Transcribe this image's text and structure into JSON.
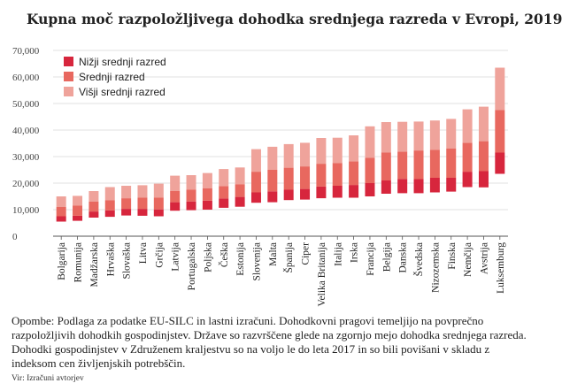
{
  "title": "Kupna moč razpoložljivega dohodka srednjega razreda v Evropi, 2019",
  "note": "Opombe: Podlaga za podatke EU-SILC in lastni izračuni. Dohodkovni pragovi temeljijo na povprečno razpoložljivih dohodkih gospodinjstev. Države so razvrščene glede na zgornjo mejo dohodka srednjega razreda. Dohodki gospodinjstev v Združenem kraljestvu so na voljo le do leta 2017 in so bili povišani v skladu z indeksom cen življenjskih potrebščin.",
  "source": "Vir: Izračuni avtorjev",
  "colors": {
    "lower": "#d7263d",
    "middle": "#e8685f",
    "upper": "#efa39b"
  },
  "chart_data": {
    "type": "bar",
    "stacked": "floating",
    "title": "Kupna moč razpoložljivega dohodka srednjega razreda v Evropi, 2019",
    "ylim": [
      0,
      70000
    ],
    "yticks": [
      "0",
      "10,000",
      "20,000",
      "30,000",
      "40,000",
      "50,000",
      "60,000",
      "70,000"
    ],
    "ytick_values": [
      0,
      10000,
      20000,
      30000,
      40000,
      50000,
      60000,
      70000
    ],
    "grid": true,
    "legend_position": "top-left",
    "categories": [
      "Bolgarija",
      "Romunija",
      "Madžarska",
      "Hrvaška",
      "Slovaška",
      "Litva",
      "Grčija",
      "Latvija",
      "Portugalska",
      "Poljska",
      "Češka",
      "Estonija",
      "Slovenija",
      "Malta",
      "Španija",
      "Ciper",
      "Velika Britanija",
      "Italija",
      "Irska",
      "Francija",
      "Belgija",
      "Danska",
      "Švedska",
      "Nizozemska",
      "Finska",
      "Nemčija",
      "Avstrija",
      "Luksemburg"
    ],
    "series": [
      {
        "name": "Nižji srednji razred",
        "key": "lower",
        "start": [
          5500,
          5800,
          7000,
          7300,
          7800,
          7700,
          7500,
          9600,
          9800,
          10000,
          10700,
          11100,
          12600,
          12800,
          13600,
          13800,
          14300,
          14500,
          14500,
          15000,
          16000,
          16200,
          16200,
          16500,
          16800,
          18500,
          18400,
          23500
        ],
        "end": [
          7500,
          7700,
          9300,
          9700,
          10300,
          10300,
          10100,
          12800,
          13100,
          13400,
          14200,
          14800,
          16500,
          16900,
          17500,
          17800,
          18700,
          19000,
          19300,
          20000,
          21000,
          21600,
          21500,
          22000,
          22000,
          24300,
          24500,
          31500
        ]
      },
      {
        "name": "Srednji razred",
        "key": "middle",
        "start": [
          7500,
          7700,
          9300,
          9700,
          10300,
          10300,
          10100,
          12800,
          13100,
          13400,
          14200,
          14800,
          16500,
          16900,
          17500,
          17800,
          18700,
          19000,
          19300,
          20000,
          21000,
          21600,
          21500,
          22000,
          22000,
          24300,
          24500,
          31500
        ],
        "end": [
          11000,
          11500,
          13000,
          13500,
          14300,
          14500,
          14500,
          17000,
          17500,
          18000,
          18900,
          19500,
          24300,
          25000,
          25800,
          26300,
          27300,
          27600,
          28200,
          29500,
          31600,
          31900,
          32300,
          32600,
          33000,
          35200,
          35800,
          47500
        ]
      },
      {
        "name": "Višji srednji razred",
        "key": "upper",
        "start": [
          11000,
          11500,
          13000,
          13500,
          14300,
          14500,
          14500,
          17000,
          17500,
          18000,
          18900,
          19500,
          24300,
          25000,
          25800,
          26300,
          27300,
          27600,
          28200,
          29500,
          31600,
          31900,
          32300,
          32600,
          33000,
          35200,
          35800,
          47500
        ],
        "end": [
          15000,
          15200,
          17000,
          18500,
          19000,
          19200,
          19800,
          22800,
          23000,
          23800,
          25300,
          25900,
          32800,
          33700,
          34700,
          35200,
          37000,
          37100,
          38000,
          41400,
          43000,
          43100,
          43200,
          43600,
          44200,
          47800,
          48800,
          63500
        ]
      }
    ]
  }
}
